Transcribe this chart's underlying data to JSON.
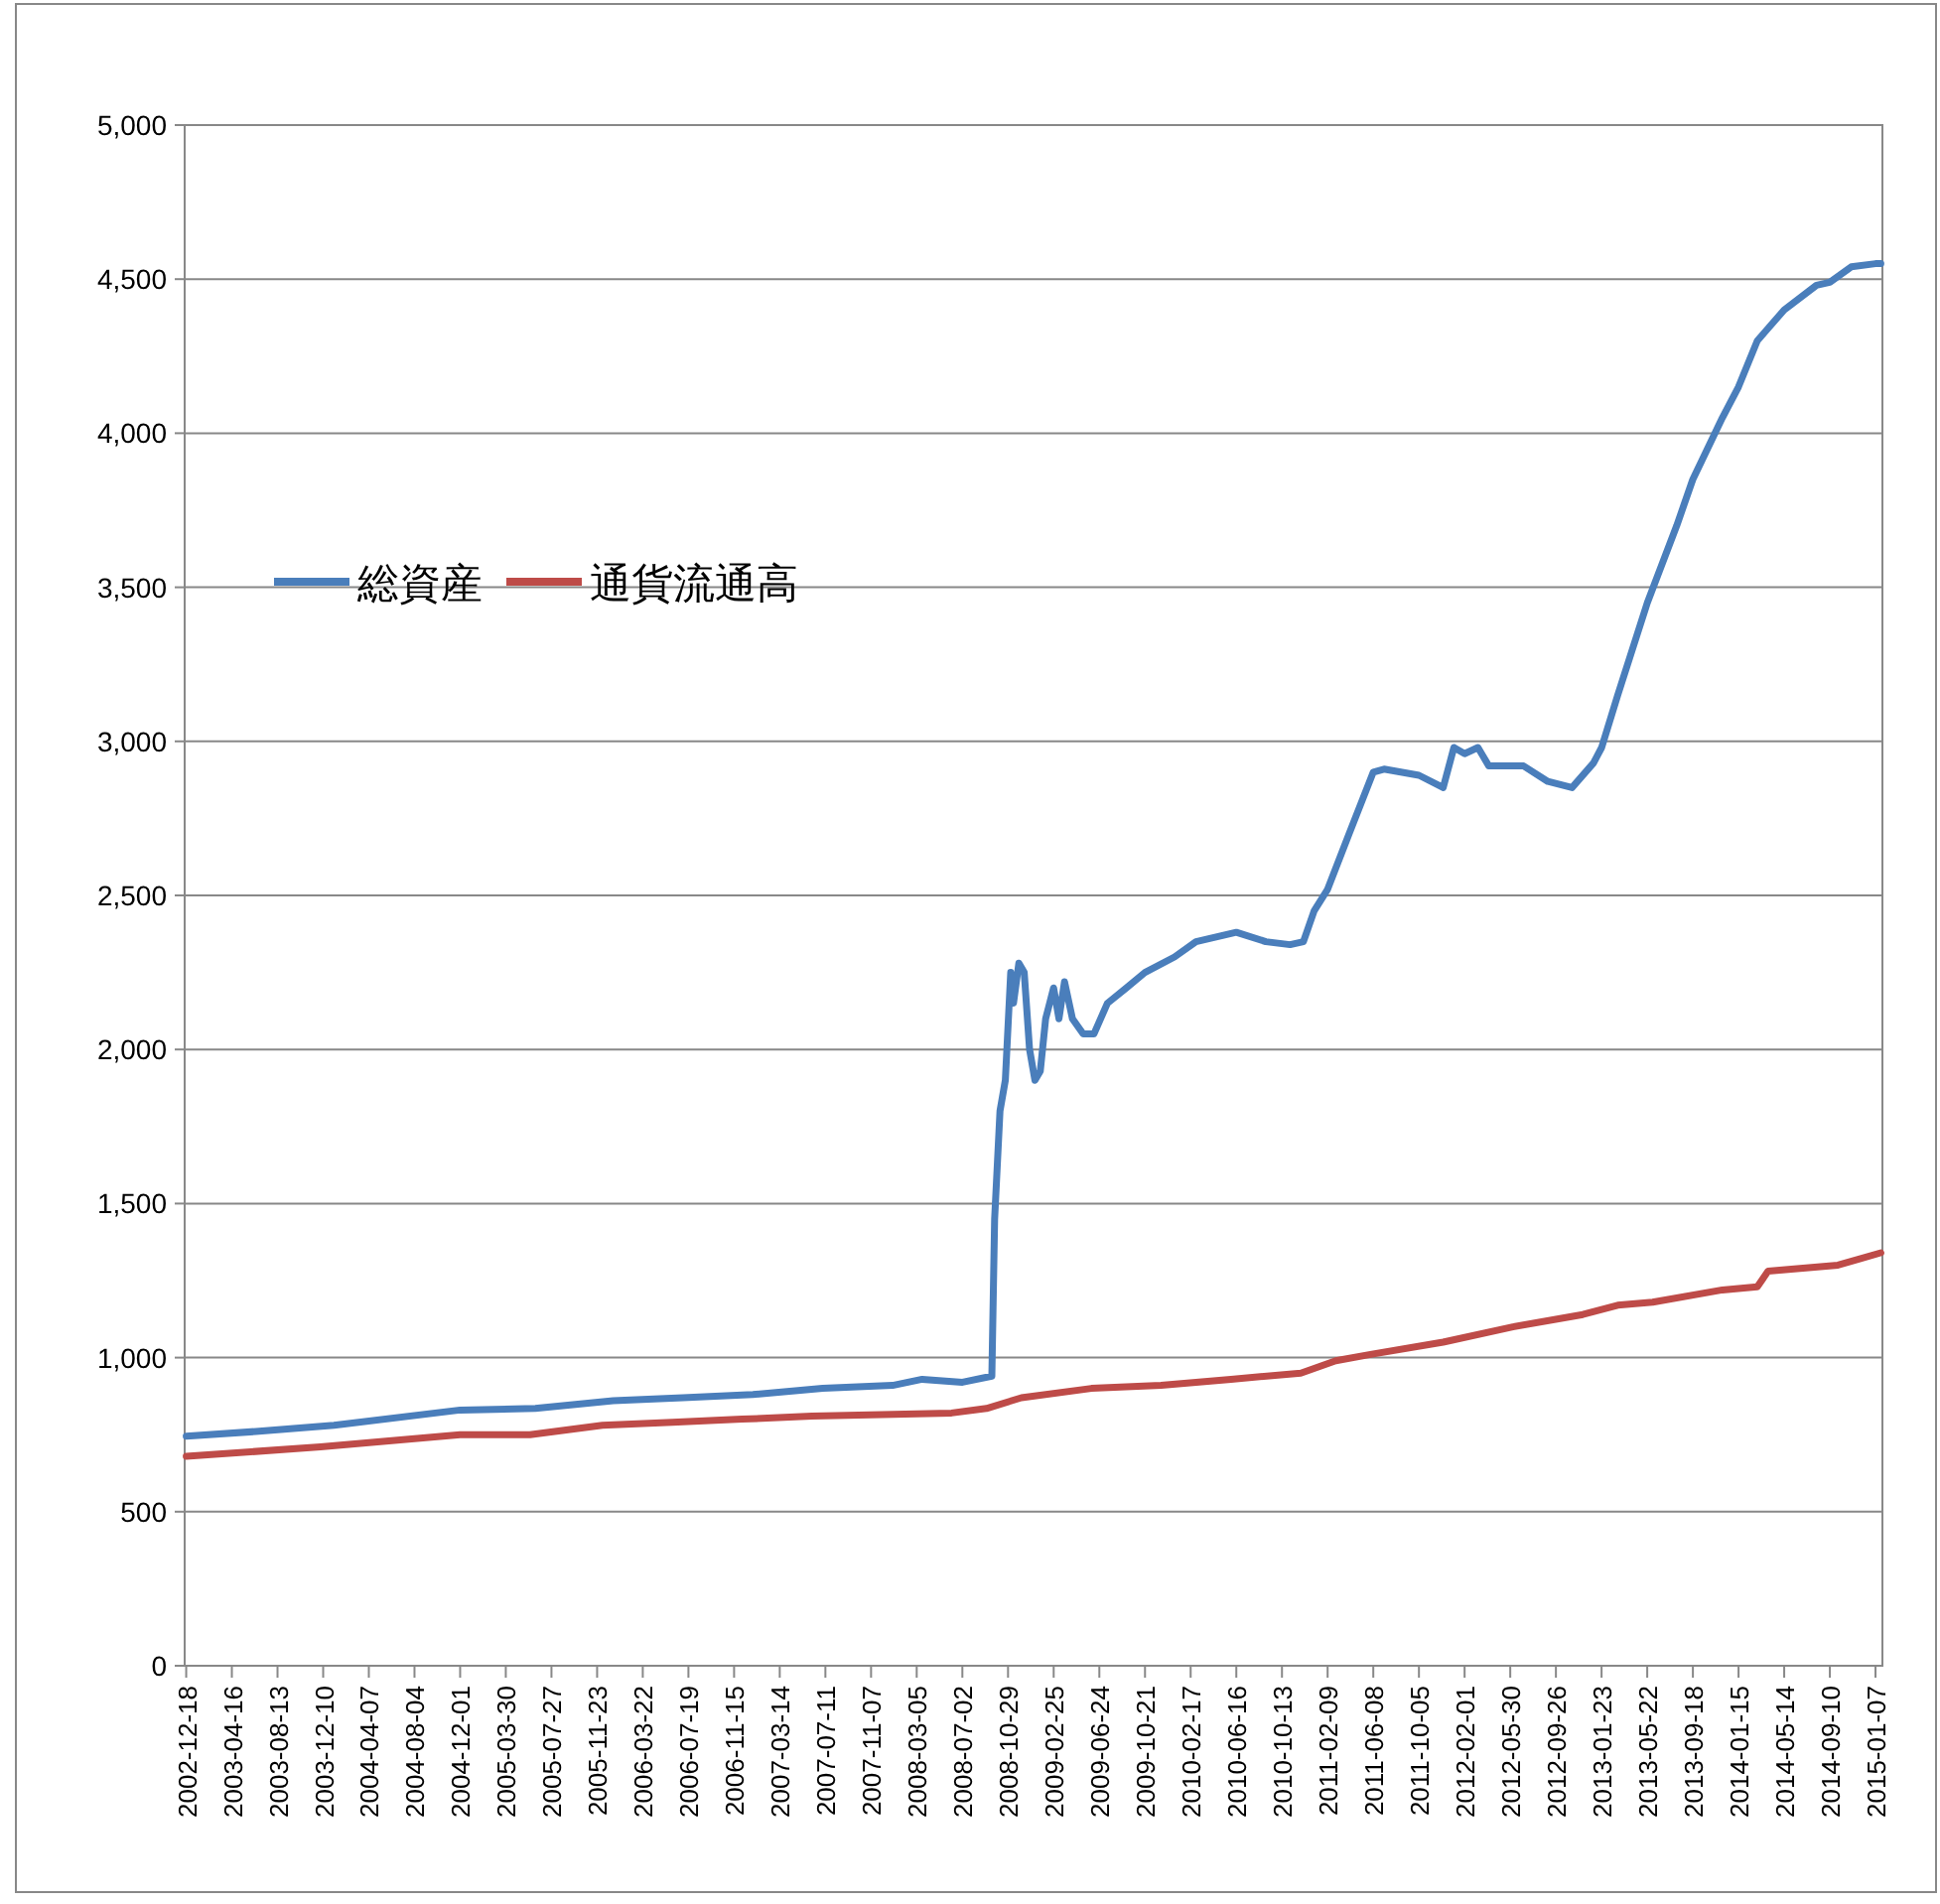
{
  "chart_data": {
    "type": "line",
    "legend": "left",
    "grid": "y",
    "line_style": "solid",
    "marker": "none",
    "xlim": [
      "2002-12-14",
      "2015-01-25"
    ],
    "ylim": [
      0,
      5000
    ],
    "yticks": [
      {
        "value": 0,
        "label": "0"
      },
      {
        "value": 500,
        "label": "500"
      },
      {
        "value": 1000,
        "label": "1,000"
      },
      {
        "value": 1500,
        "label": "1,500"
      },
      {
        "value": 2000,
        "label": "2,000"
      },
      {
        "value": 2500,
        "label": "2,500"
      },
      {
        "value": 3000,
        "label": "3,000"
      },
      {
        "value": 3500,
        "label": "3,500"
      },
      {
        "value": 4000,
        "label": "4,000"
      },
      {
        "value": 4500,
        "label": "4,500"
      },
      {
        "value": 5000,
        "label": "5,000"
      }
    ],
    "xticks": [
      "2002-12-18",
      "2003-04-16",
      "2003-08-13",
      "2003-12-10",
      "2004-04-07",
      "2004-08-04",
      "2004-12-01",
      "2005-03-30",
      "2005-07-27",
      "2005-11-23",
      "2006-03-22",
      "2006-07-19",
      "2006-11-15",
      "2007-03-14",
      "2007-07-11",
      "2007-11-07",
      "2008-03-05",
      "2008-07-02",
      "2008-10-29",
      "2009-02-25",
      "2009-06-24",
      "2009-10-21",
      "2010-02-17",
      "2010-06-16",
      "2010-10-13",
      "2011-02-09",
      "2011-06-08",
      "2011-10-05",
      "2012-02-01",
      "2012-05-30",
      "2012-09-26",
      "2013-01-23",
      "2013-05-22",
      "2013-09-18",
      "2014-01-15",
      "2014-05-14",
      "2014-09-10",
      "2015-01-07"
    ],
    "series": [
      {
        "name": "総資産",
        "color": "#4a7ebb",
        "x": [
          "2002-12-18",
          "2003-06-18",
          "2004-01-07",
          "2004-12-01",
          "2005-06-15",
          "2006-01-04",
          "2006-07-05",
          "2007-01-03",
          "2007-07-04",
          "2008-01-02",
          "2008-03-19",
          "2008-07-02",
          "2008-09-17",
          "2008-09-24",
          "2008-10-08",
          "2008-10-22",
          "2008-11-05",
          "2008-11-12",
          "2008-11-26",
          "2008-12-10",
          "2008-12-24",
          "2009-01-07",
          "2009-01-21",
          "2009-02-04",
          "2009-02-25",
          "2009-03-11",
          "2009-03-25",
          "2009-04-15",
          "2009-05-13",
          "2009-06-10",
          "2009-07-15",
          "2009-09-02",
          "2009-10-21",
          "2010-01-06",
          "2010-03-03",
          "2010-06-16",
          "2010-09-01",
          "2010-11-03",
          "2010-12-08",
          "2011-01-05",
          "2011-02-09",
          "2011-04-06",
          "2011-06-08",
          "2011-07-06",
          "2011-10-05",
          "2011-12-07",
          "2012-01-04",
          "2012-02-01",
          "2012-03-07",
          "2012-04-04",
          "2012-07-04",
          "2012-09-05",
          "2012-11-07",
          "2013-01-02",
          "2013-01-23",
          "2013-03-06",
          "2013-05-22",
          "2013-08-07",
          "2013-09-18",
          "2013-12-04",
          "2014-01-15",
          "2014-03-05",
          "2014-05-14",
          "2014-08-06",
          "2014-09-10",
          "2014-11-05",
          "2015-01-07",
          "2015-01-21"
        ],
        "values": [
          745,
          760,
          780,
          830,
          835,
          860,
          870,
          880,
          900,
          910,
          930,
          920,
          940,
          1450,
          1800,
          1900,
          2250,
          2150,
          2280,
          2250,
          2000,
          1900,
          1930,
          2100,
          2200,
          2100,
          2220,
          2100,
          2050,
          2050,
          2150,
          2200,
          2250,
          2300,
          2350,
          2380,
          2350,
          2340,
          2350,
          2450,
          2520,
          2700,
          2900,
          2910,
          2890,
          2850,
          2980,
          2960,
          2980,
          2920,
          2920,
          2870,
          2850,
          2930,
          2980,
          3150,
          3450,
          3700,
          3850,
          4050,
          4150,
          4300,
          4400,
          4480,
          4490,
          4540,
          4550,
          4550
        ]
      },
      {
        "name": "通貨流通高",
        "color": "#be4b48",
        "x": [
          "2002-12-18",
          "2003-12-03",
          "2004-12-01",
          "2005-06-01",
          "2005-12-07",
          "2006-06-07",
          "2006-12-06",
          "2007-06-06",
          "2007-12-05",
          "2008-06-04",
          "2008-09-03",
          "2008-12-03",
          "2009-06-03",
          "2009-12-02",
          "2010-06-02",
          "2010-12-01",
          "2011-03-02",
          "2011-06-01",
          "2011-12-07",
          "2012-06-06",
          "2012-12-05",
          "2013-03-06",
          "2013-06-05",
          "2013-12-04",
          "2014-03-05",
          "2014-04-02",
          "2014-10-01",
          "2015-01-21"
        ],
        "values": [
          680,
          710,
          750,
          750,
          780,
          790,
          800,
          810,
          815,
          820,
          835,
          870,
          900,
          910,
          930,
          950,
          990,
          1010,
          1050,
          1100,
          1140,
          1170,
          1180,
          1220,
          1230,
          1280,
          1300,
          1340
        ]
      }
    ]
  }
}
